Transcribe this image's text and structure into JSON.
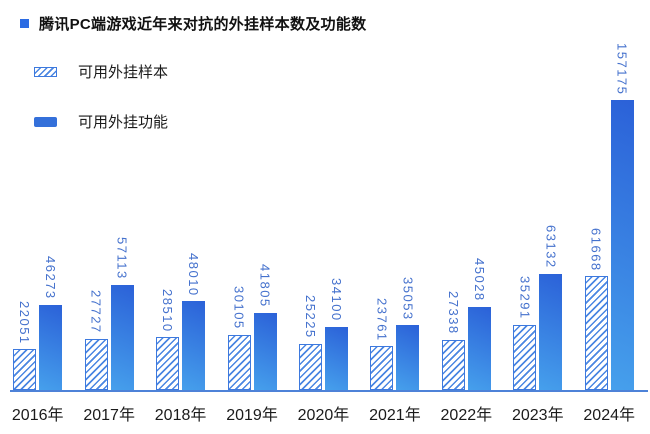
{
  "title": {
    "text": "腾讯PC端游戏近年来对抗的外挂样本数及功能数"
  },
  "legend": {
    "items": [
      {
        "label": "可用外挂样本",
        "swatch": "hatched"
      },
      {
        "label": "可用外挂功能",
        "swatch": "solid"
      }
    ]
  },
  "colors": {
    "bar_solid_start": "#46a0ec",
    "bar_solid_end": "#2b61d8",
    "hatch_stripe": "#4a86e2",
    "hatch_border": "#3d79de",
    "value_label": "#4471cd",
    "axis_line": "#4d82d8",
    "legend_solid_swatch": "#3470da",
    "title_bullet": "#2b6be3",
    "text_dark": "#1b1b1b"
  },
  "chart_data": {
    "type": "bar",
    "title": "腾讯PC端游戏近年来对抗的外挂样本数及功能数",
    "categories": [
      "2016年",
      "2017年",
      "2018年",
      "2019年",
      "2020年",
      "2021年",
      "2022年",
      "2023年",
      "2024年"
    ],
    "series": [
      {
        "name": "可用外挂样本",
        "style": "hatched",
        "values": [
          22051,
          27727,
          28510,
          30105,
          25225,
          23761,
          27338,
          35291,
          61668
        ]
      },
      {
        "name": "可用外挂功能",
        "style": "solid",
        "values": [
          46273,
          57113,
          48010,
          41805,
          34100,
          35053,
          45028,
          63132,
          157175
        ]
      }
    ],
    "ylim": [
      0,
      157175
    ],
    "grid": false,
    "legend_position": "top-left",
    "value_labels": "rotated-90-above-bars"
  }
}
